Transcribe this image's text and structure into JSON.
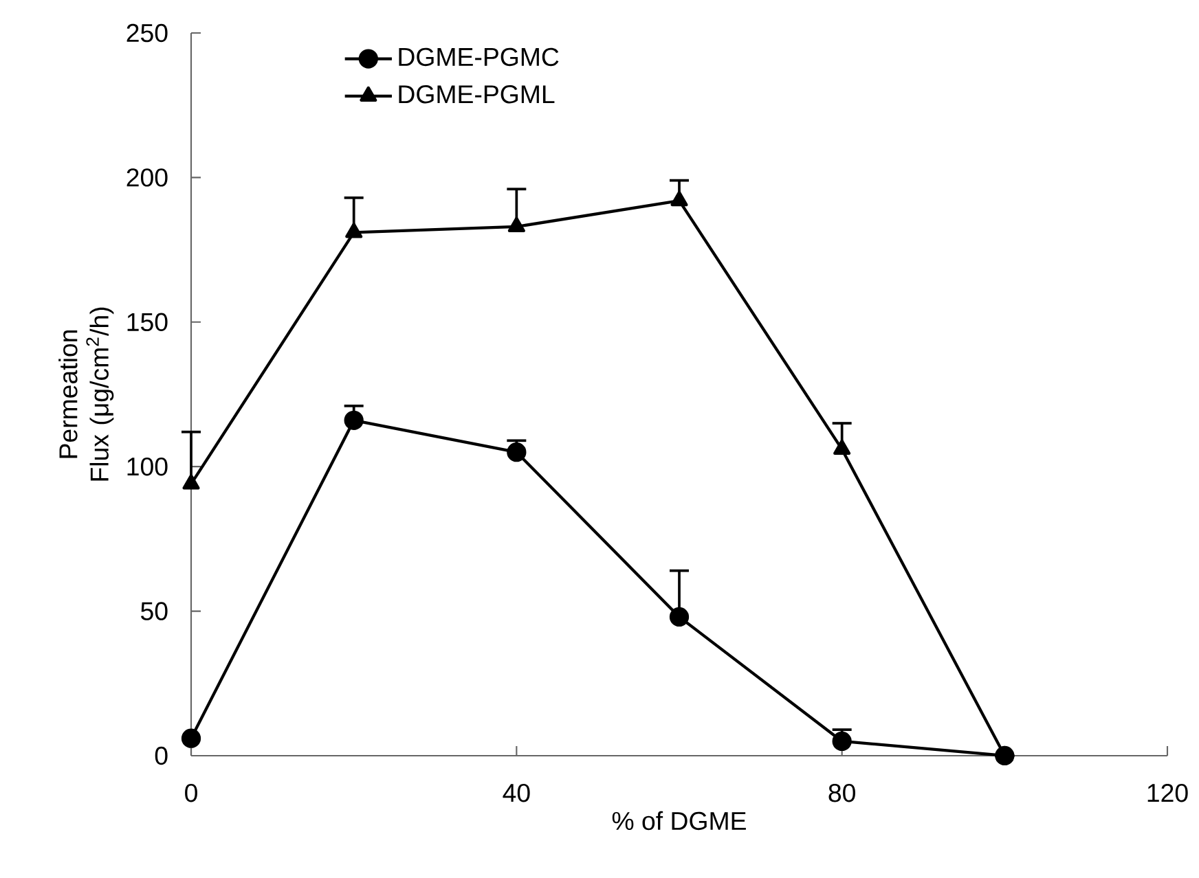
{
  "chart_data": {
    "type": "line",
    "xlabel": "% of DGME",
    "ylabel": "Permeation Flux (μg/cm$^{2}$/h)",
    "x": [
      0,
      20,
      40,
      60,
      80,
      100
    ],
    "series": [
      {
        "name": "DGME-PGMC",
        "color": "#000000",
        "marker": "circle",
        "values": [
          6,
          116,
          105,
          48,
          5,
          0
        ],
        "errors": [
          null,
          [
            116,
            121
          ],
          [
            105,
            109
          ],
          [
            48,
            64
          ],
          [
            5,
            9
          ],
          null
        ]
      },
      {
        "name": "DGME-PGML",
        "color": "#000000",
        "marker": "triangle",
        "values": [
          94,
          181,
          183,
          192,
          106,
          0
        ],
        "errors": [
          [
            94,
            112
          ],
          [
            181,
            193
          ],
          [
            183,
            196
          ],
          [
            192,
            199
          ],
          [
            106,
            115
          ],
          null
        ]
      }
    ],
    "xlim": [
      0,
      120
    ],
    "xticks": [
      0,
      40,
      80,
      120
    ],
    "ylim": [
      0,
      250
    ],
    "yticks": [
      0,
      50,
      100,
      150,
      200,
      250
    ],
    "grid": false,
    "legend": "top left",
    "line_style": "solid"
  }
}
